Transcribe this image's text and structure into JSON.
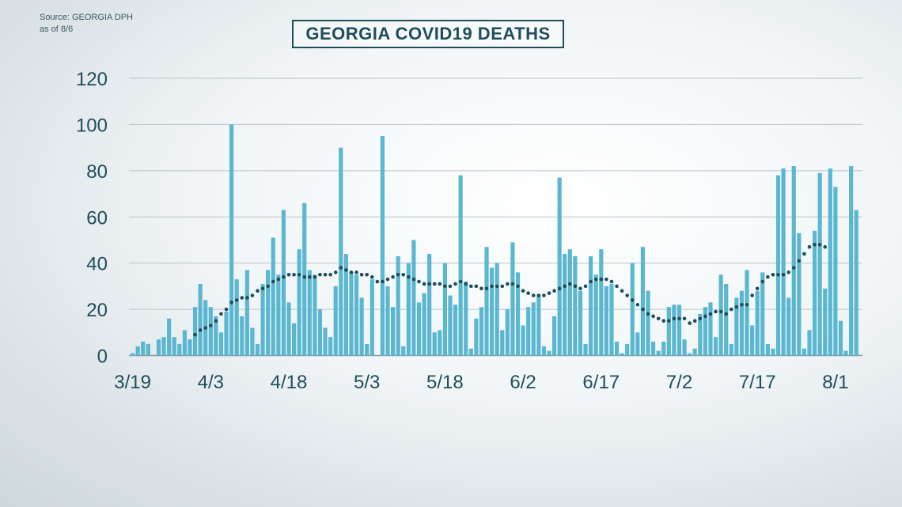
{
  "source": {
    "line1": "Source: GEORGIA DPH",
    "line2": "as of 8/6"
  },
  "chart_data": {
    "type": "bar",
    "title": "GEORGIA COVID19 DEATHS",
    "xlabel": "",
    "ylabel": "",
    "ylim": [
      0,
      120
    ],
    "yticks": [
      0,
      20,
      40,
      60,
      80,
      100,
      120
    ],
    "x_tick_labels": [
      "3/19",
      "4/3",
      "4/18",
      "5/3",
      "5/18",
      "6/2",
      "6/17",
      "7/2",
      "7/17",
      "8/1"
    ],
    "x_tick_index": [
      0,
      15,
      30,
      45,
      60,
      75,
      90,
      105,
      120,
      135
    ],
    "grid": true,
    "colors": {
      "bars": "#5ab7d1",
      "average": "#1f4e5a",
      "text": "#1f4e5a"
    },
    "series": [
      {
        "type": "bar",
        "values": [
          1,
          4,
          6,
          5,
          0,
          7,
          8,
          16,
          8,
          5,
          11,
          7,
          21,
          31,
          24,
          21,
          17,
          10,
          19,
          100,
          33,
          17,
          37,
          12,
          5,
          31,
          37,
          51,
          35,
          63,
          23,
          14,
          46,
          66,
          37,
          35,
          20,
          12,
          8,
          30,
          90,
          44,
          36,
          35,
          25,
          5,
          33,
          0,
          95,
          30,
          21,
          43,
          4,
          40,
          50,
          23,
          27,
          44,
          10,
          11,
          40,
          26,
          22,
          78,
          32,
          3,
          16,
          21,
          47,
          38,
          40,
          11,
          20,
          49,
          36,
          13,
          21,
          23,
          26,
          4,
          2,
          17,
          77,
          44,
          46,
          43,
          28,
          5,
          43,
          35,
          46,
          30,
          31,
          6,
          1,
          5,
          40,
          10,
          47,
          28,
          6,
          2,
          6,
          21,
          22,
          22,
          7,
          1,
          3,
          18,
          21,
          23,
          8,
          35,
          31,
          5,
          25,
          28,
          37,
          13,
          28,
          36,
          5,
          3,
          78,
          81,
          25,
          82,
          53,
          3,
          11,
          54,
          79,
          29,
          81,
          73,
          15,
          2,
          82,
          63
        ]
      },
      {
        "type": "line",
        "style": "dotted",
        "start_index": 12,
        "values": [
          9,
          11,
          12,
          13,
          15,
          18,
          20,
          23,
          24,
          25,
          25,
          26,
          28,
          29,
          30,
          32,
          33,
          34,
          35,
          35,
          35,
          34,
          34,
          34,
          35,
          35,
          35,
          36,
          38,
          37,
          36,
          36,
          35,
          35,
          34,
          32,
          32,
          33,
          34,
          35,
          35,
          34,
          33,
          32,
          31,
          31,
          31,
          31,
          30,
          30,
          31,
          32,
          31,
          30,
          30,
          29,
          29,
          30,
          30,
          30,
          31,
          31,
          30,
          28,
          27,
          26,
          26,
          26,
          27,
          28,
          29,
          30,
          31,
          30,
          29,
          30,
          32,
          33,
          33,
          33,
          32,
          30,
          28,
          26,
          24,
          22,
          20,
          18,
          17,
          16,
          15,
          15,
          16,
          16,
          16,
          14,
          15,
          16,
          17,
          18,
          19,
          19,
          18,
          20,
          21,
          22,
          22,
          26,
          29,
          32,
          34,
          35,
          35,
          35,
          36,
          38,
          41,
          44,
          47,
          48,
          48,
          47
        ]
      }
    ]
  }
}
